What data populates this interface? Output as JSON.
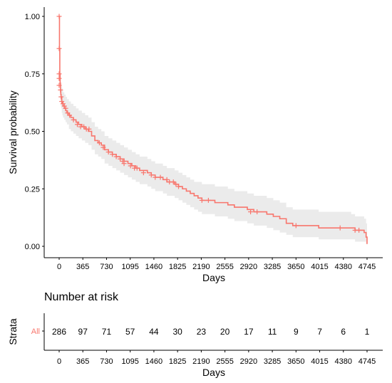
{
  "chart_data": [
    {
      "type": "line",
      "chart_kind": "kaplan-meier survival curve",
      "xlabel": "Days",
      "ylabel": "Survival probability",
      "xlim": [
        0,
        4900
      ],
      "ylim": [
        0,
        1
      ],
      "x_ticks": [
        0,
        365,
        730,
        1095,
        1460,
        1825,
        2190,
        2555,
        2920,
        3285,
        3650,
        4015,
        4380,
        4745
      ],
      "y_ticks": [
        "0.00",
        "0.25",
        "0.50",
        "0.75",
        "1.00"
      ],
      "y_tick_values": [
        0,
        0.25,
        0.5,
        0.75,
        1.0
      ],
      "grid": false,
      "legend": "none",
      "color": "#F8766D",
      "ci_color": "#EBEBEB",
      "series": [
        {
          "x": [
            0,
            5,
            10,
            15,
            20,
            25,
            30,
            40,
            50,
            60,
            80,
            100,
            120,
            150,
            180,
            220,
            260,
            300,
            350,
            400,
            450,
            500,
            550,
            600,
            650,
            700,
            760,
            820,
            880,
            940,
            1000,
            1060,
            1120,
            1180,
            1240,
            1300,
            1360,
            1420,
            1480,
            1540,
            1600,
            1660,
            1720,
            1780,
            1840,
            1900,
            1960,
            2020,
            2080,
            2140,
            2200,
            2300,
            2400,
            2500,
            2600,
            2700,
            2800,
            2900,
            3000,
            3100,
            3200,
            3300,
            3400,
            3500,
            3600,
            3700,
            3800,
            3900,
            4000,
            4100,
            4200,
            4300,
            4400,
            4500,
            4560,
            4600,
            4680,
            4700,
            4720,
            4730,
            4745
          ],
          "y": [
            1.0,
            0.86,
            0.75,
            0.71,
            0.68,
            0.66,
            0.65,
            0.63,
            0.62,
            0.61,
            0.6,
            0.59,
            0.58,
            0.57,
            0.56,
            0.55,
            0.54,
            0.53,
            0.52,
            0.51,
            0.5,
            0.48,
            0.46,
            0.45,
            0.44,
            0.42,
            0.41,
            0.4,
            0.39,
            0.38,
            0.37,
            0.36,
            0.35,
            0.34,
            0.33,
            0.33,
            0.32,
            0.31,
            0.3,
            0.3,
            0.29,
            0.28,
            0.28,
            0.27,
            0.26,
            0.25,
            0.24,
            0.23,
            0.22,
            0.21,
            0.2,
            0.2,
            0.19,
            0.19,
            0.18,
            0.17,
            0.17,
            0.16,
            0.15,
            0.15,
            0.14,
            0.13,
            0.12,
            0.1,
            0.09,
            0.09,
            0.09,
            0.09,
            0.08,
            0.08,
            0.08,
            0.08,
            0.08,
            0.08,
            0.07,
            0.07,
            0.07,
            0.06,
            0.06,
            0.04,
            0.01
          ]
        }
      ],
      "ci_upper": [
        1.0,
        0.9,
        0.8,
        0.76,
        0.73,
        0.71,
        0.7,
        0.69,
        0.68,
        0.67,
        0.66,
        0.65,
        0.64,
        0.63,
        0.62,
        0.61,
        0.6,
        0.59,
        0.58,
        0.57,
        0.56,
        0.54,
        0.52,
        0.51,
        0.5,
        0.48,
        0.47,
        0.46,
        0.45,
        0.44,
        0.43,
        0.42,
        0.41,
        0.4,
        0.39,
        0.39,
        0.38,
        0.37,
        0.36,
        0.36,
        0.35,
        0.34,
        0.34,
        0.33,
        0.32,
        0.31,
        0.3,
        0.29,
        0.28,
        0.28,
        0.27,
        0.27,
        0.26,
        0.26,
        0.25,
        0.24,
        0.24,
        0.23,
        0.22,
        0.22,
        0.21,
        0.2,
        0.19,
        0.17,
        0.16,
        0.16,
        0.16,
        0.16,
        0.15,
        0.15,
        0.15,
        0.15,
        0.15,
        0.14,
        0.13,
        0.13,
        0.13,
        0.12,
        0.12,
        0.1,
        0.02
      ],
      "ci_lower": [
        1.0,
        0.82,
        0.7,
        0.66,
        0.63,
        0.61,
        0.6,
        0.58,
        0.57,
        0.56,
        0.55,
        0.54,
        0.53,
        0.51,
        0.5,
        0.49,
        0.48,
        0.47,
        0.46,
        0.45,
        0.44,
        0.42,
        0.4,
        0.39,
        0.38,
        0.36,
        0.35,
        0.34,
        0.33,
        0.32,
        0.31,
        0.3,
        0.29,
        0.28,
        0.27,
        0.27,
        0.26,
        0.25,
        0.24,
        0.24,
        0.23,
        0.22,
        0.22,
        0.21,
        0.2,
        0.19,
        0.18,
        0.17,
        0.16,
        0.15,
        0.14,
        0.14,
        0.13,
        0.13,
        0.12,
        0.11,
        0.11,
        0.1,
        0.09,
        0.09,
        0.08,
        0.07,
        0.06,
        0.05,
        0.04,
        0.04,
        0.04,
        0.04,
        0.03,
        0.03,
        0.03,
        0.03,
        0.03,
        0.03,
        0.02,
        0.02,
        0.02,
        0.02,
        0.02,
        0.01,
        0.0
      ],
      "censor_marks": [
        [
          0,
          1.0
        ],
        [
          0,
          0.86
        ],
        [
          0,
          0.75
        ],
        [
          0,
          0.73
        ],
        [
          0,
          0.7
        ],
        [
          20,
          0.68
        ],
        [
          30,
          0.65
        ],
        [
          40,
          0.63
        ],
        [
          60,
          0.62
        ],
        [
          80,
          0.61
        ],
        [
          100,
          0.6
        ],
        [
          130,
          0.58
        ],
        [
          160,
          0.57
        ],
        [
          220,
          0.55
        ],
        [
          280,
          0.53
        ],
        [
          330,
          0.52
        ],
        [
          380,
          0.52
        ],
        [
          420,
          0.51
        ],
        [
          460,
          0.51
        ],
        [
          620,
          0.45
        ],
        [
          680,
          0.43
        ],
        [
          760,
          0.41
        ],
        [
          820,
          0.4
        ],
        [
          880,
          0.39
        ],
        [
          940,
          0.38
        ],
        [
          980,
          0.37
        ],
        [
          1000,
          0.36
        ],
        [
          1100,
          0.35
        ],
        [
          1160,
          0.34
        ],
        [
          1200,
          0.34
        ],
        [
          1300,
          0.32
        ],
        [
          1420,
          0.31
        ],
        [
          1480,
          0.3
        ],
        [
          1560,
          0.3
        ],
        [
          1660,
          0.29
        ],
        [
          1700,
          0.28
        ],
        [
          1760,
          0.28
        ],
        [
          1800,
          0.27
        ],
        [
          1840,
          0.26
        ],
        [
          2200,
          0.2
        ],
        [
          2300,
          0.2
        ],
        [
          2950,
          0.15
        ],
        [
          3050,
          0.15
        ],
        [
          3650,
          0.09
        ],
        [
          4330,
          0.08
        ],
        [
          4560,
          0.07
        ],
        [
          4620,
          0.07
        ]
      ]
    },
    {
      "type": "table",
      "title": "Number at risk",
      "ylabel": "Strata",
      "xlabel": "Days",
      "row_label": "All",
      "x": [
        0,
        365,
        730,
        1095,
        1460,
        1825,
        2190,
        2555,
        2920,
        3285,
        3650,
        4015,
        4380,
        4745
      ],
      "values": [
        286,
        97,
        71,
        57,
        44,
        30,
        23,
        20,
        17,
        11,
        9,
        7,
        6,
        1
      ],
      "x_ticks": [
        0,
        365,
        730,
        1095,
        1460,
        1825,
        2190,
        2555,
        2920,
        3285,
        3650,
        4015,
        4380,
        4745
      ]
    }
  ]
}
